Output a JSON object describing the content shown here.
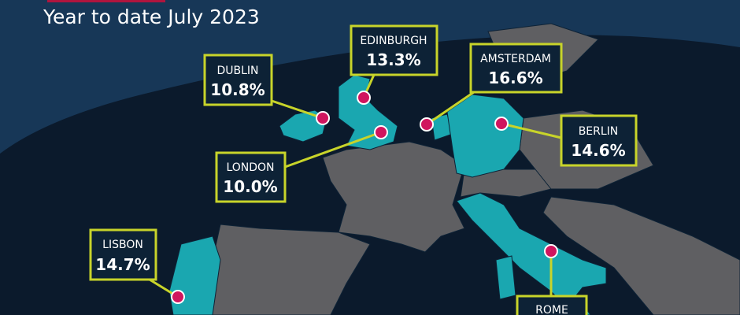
{
  "subtitle": "Year to date July 2023",
  "cities": [
    {
      "name": "DUBLIN",
      "value": "10.8%"
    },
    {
      "name": "EDINBURGH",
      "value": "13.3%"
    },
    {
      "name": "AMSTERDAM",
      "value": "16.6%"
    },
    {
      "name": "BERLIN",
      "value": "14.6%"
    },
    {
      "name": "LONDON",
      "value": "10.0%"
    },
    {
      "name": "LISBON",
      "value": "14.7%"
    },
    {
      "name": "ROME"
    }
  ]
}
